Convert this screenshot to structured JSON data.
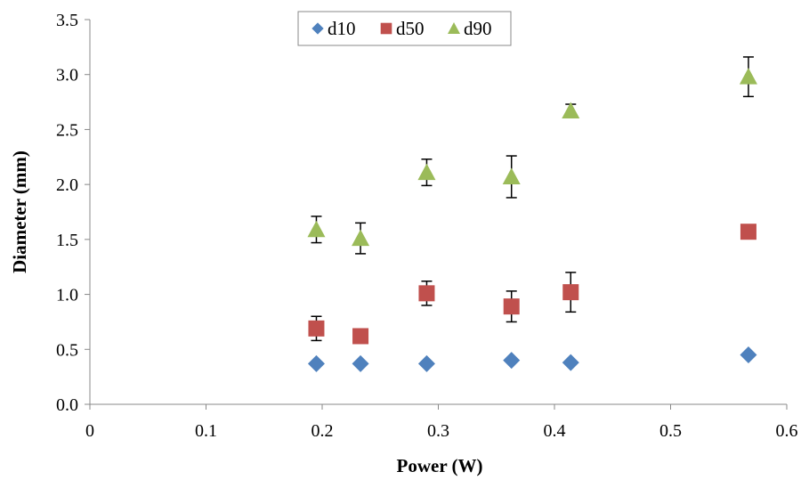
{
  "chart_data": {
    "type": "scatter",
    "xlabel": "Power (W)",
    "ylabel": "Diameter (mm)",
    "xlim": [
      0,
      0.6
    ],
    "ylim": [
      0,
      3.5
    ],
    "x_ticks": [
      "0",
      "0.1",
      "0.2",
      "0.3",
      "0.4",
      "0.5",
      "0.6"
    ],
    "y_ticks": [
      "0.0",
      "0.5",
      "1.0",
      "1.5",
      "2.0",
      "2.5",
      "3.0",
      "3.5"
    ],
    "grid": false,
    "legend_position": "top-center",
    "series": [
      {
        "name": "d10",
        "marker": "diamond",
        "color": "#4f81bd",
        "x": [
          0.195,
          0.233,
          0.29,
          0.363,
          0.414,
          0.567
        ],
        "y": [
          0.37,
          0.37,
          0.37,
          0.4,
          0.38,
          0.45
        ],
        "error": [
          0,
          0,
          0,
          0,
          0,
          0
        ]
      },
      {
        "name": "d50",
        "marker": "square",
        "color": "#c0504d",
        "x": [
          0.195,
          0.233,
          0.29,
          0.363,
          0.414,
          0.567
        ],
        "y": [
          0.69,
          0.62,
          1.01,
          0.89,
          1.02,
          1.57
        ],
        "error": [
          0.11,
          0,
          0.11,
          0.14,
          0.18,
          0
        ]
      },
      {
        "name": "d90",
        "marker": "triangle",
        "color": "#9bbb59",
        "x": [
          0.195,
          0.233,
          0.29,
          0.363,
          0.414,
          0.567
        ],
        "y": [
          1.59,
          1.51,
          2.11,
          2.07,
          2.67,
          2.98
        ],
        "error": [
          0.12,
          0.14,
          0.12,
          0.19,
          0.06,
          0.18
        ]
      }
    ]
  }
}
